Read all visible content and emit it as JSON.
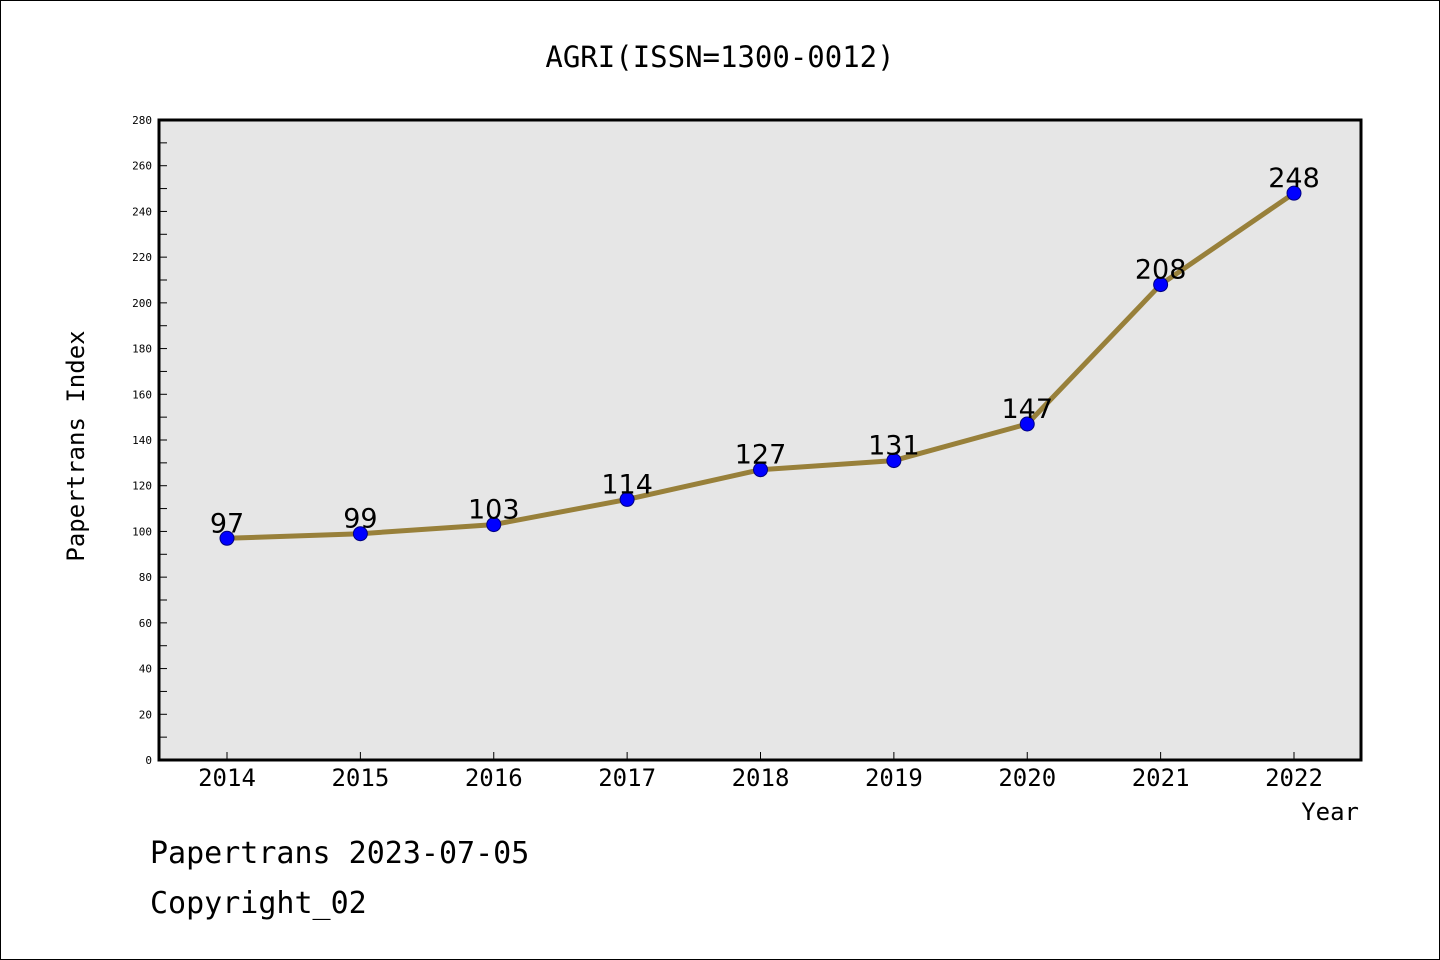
{
  "chart_data": {
    "type": "line",
    "title": "AGRI(ISSN=1300-0012)",
    "xlabel": "Year",
    "ylabel": "Papertrans Index",
    "categories": [
      "2014",
      "2015",
      "2016",
      "2017",
      "2018",
      "2019",
      "2020",
      "2021",
      "2022"
    ],
    "series": [
      {
        "values": [
          97,
          99,
          103,
          114,
          127,
          131,
          147,
          208,
          248
        ]
      }
    ],
    "ylim": [
      0,
      280
    ],
    "yticks": [
      "0",
      "20",
      "40",
      "60",
      "80",
      "100",
      "120",
      "140",
      "160",
      "180",
      "200",
      "220",
      "240",
      "260",
      "280"
    ],
    "grid": false,
    "colors": {
      "line": "#98803a",
      "marker": "#0000ff",
      "plot_bg": "#e6e6e6"
    }
  },
  "footer": {
    "line1": "Papertrans 2023-07-05",
    "line2": "Copyright_02"
  }
}
